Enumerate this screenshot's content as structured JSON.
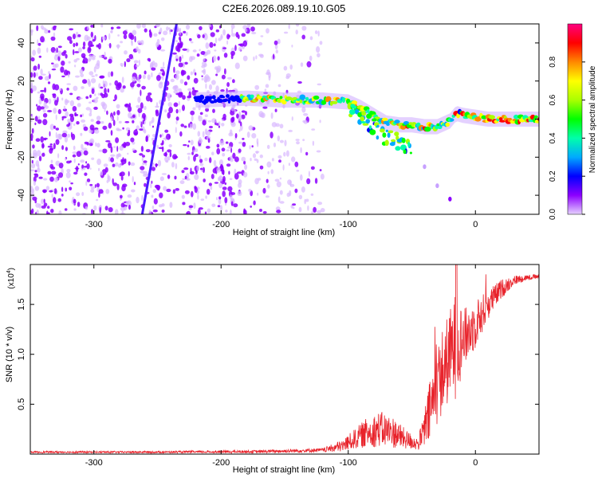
{
  "figure": {
    "title": "C2E6.2026.089.19.10.G05"
  },
  "chart_data": [
    {
      "id": "spectrogram",
      "type": "heatmap",
      "title": "C2E6.2026.089.19.10.G05",
      "xlabel": "Height of straight line (km)",
      "ylabel": "Frequency (Hz)",
      "xlim": [
        -350,
        50
      ],
      "ylim": [
        -50,
        50
      ],
      "x_ticks": [
        -300,
        -200,
        -100,
        0
      ],
      "x_tick_labels": [
        "-300",
        "-200",
        "-100",
        "0"
      ],
      "y_ticks": [
        -40,
        -20,
        0,
        20,
        40
      ],
      "y_tick_labels": [
        "-40",
        "-20",
        "0",
        "20",
        "40"
      ],
      "colorbar": {
        "label": "Normalized spectral amplitude",
        "range": [
          0,
          1
        ],
        "ticks": [
          0.0,
          0.2,
          0.4,
          0.6,
          0.8
        ],
        "tick_labels": [
          "0.0",
          "0.2",
          "0.4",
          "0.6",
          "0.8"
        ],
        "colors": [
          "#e6d2ff",
          "#8c00ff",
          "#0000ff",
          "#00aaff",
          "#00ffaa",
          "#00ff00",
          "#aaff00",
          "#ffff00",
          "#ff8800",
          "#ff0000",
          "#ff0080"
        ]
      },
      "main_signal": [
        {
          "x": -220,
          "y": 10
        },
        {
          "x": -180,
          "y": 11
        },
        {
          "x": -150,
          "y": 10
        },
        {
          "x": -120,
          "y": 10
        },
        {
          "x": -100,
          "y": 9
        },
        {
          "x": -90,
          "y": 6
        },
        {
          "x": -80,
          "y": 2
        },
        {
          "x": -70,
          "y": -2
        },
        {
          "x": -60,
          "y": -3
        },
        {
          "x": -50,
          "y": -3
        },
        {
          "x": -40,
          "y": -4
        },
        {
          "x": -30,
          "y": -4
        },
        {
          "x": -20,
          "y": -1
        },
        {
          "x": -15,
          "y": 3
        },
        {
          "x": -10,
          "y": 2
        },
        {
          "x": 0,
          "y": 1
        },
        {
          "x": 10,
          "y": 0
        },
        {
          "x": 30,
          "y": 0
        },
        {
          "x": 50,
          "y": 0
        }
      ],
      "lower_branch": [
        {
          "x": -100,
          "y": 6
        },
        {
          "x": -90,
          "y": 2
        },
        {
          "x": -80,
          "y": -4
        },
        {
          "x": -70,
          "y": -9
        },
        {
          "x": -60,
          "y": -12
        },
        {
          "x": -50,
          "y": -14
        }
      ],
      "faint_streak": [
        {
          "x": -40,
          "y": -25
        },
        {
          "x": -30,
          "y": -35
        },
        {
          "x": -20,
          "y": -42
        }
      ],
      "diagonal_line": {
        "x1": -262,
        "y1": -50,
        "x2": -235,
        "y2": 50
      }
    },
    {
      "id": "snr",
      "type": "line",
      "xlabel": "Height of straight line (km)",
      "ylabel": "SNR (10 * v/v)",
      "multiplier": "(x10",
      "multiplier_exp": "4",
      "multiplier_close": ")",
      "xlim": [
        -350,
        50
      ],
      "ylim": [
        0,
        1.9
      ],
      "x_ticks": [
        -300,
        -200,
        -100,
        0
      ],
      "x_tick_labels": [
        "-300",
        "-200",
        "-100",
        "0"
      ],
      "y_ticks": [
        0.5,
        1.0,
        1.5
      ],
      "y_tick_labels": [
        "0.5",
        "1.0",
        "1.5"
      ],
      "line_color": "#e8232b",
      "envelope": [
        {
          "x": -350,
          "mean": 0.02,
          "amp": 0.01
        },
        {
          "x": -250,
          "mean": 0.02,
          "amp": 0.01
        },
        {
          "x": -170,
          "mean": 0.025,
          "amp": 0.015
        },
        {
          "x": -120,
          "mean": 0.04,
          "amp": 0.02
        },
        {
          "x": -105,
          "mean": 0.08,
          "amp": 0.06
        },
        {
          "x": -95,
          "mean": 0.15,
          "amp": 0.1
        },
        {
          "x": -85,
          "mean": 0.22,
          "amp": 0.15
        },
        {
          "x": -75,
          "mean": 0.25,
          "amp": 0.18
        },
        {
          "x": -65,
          "mean": 0.22,
          "amp": 0.16
        },
        {
          "x": -55,
          "mean": 0.15,
          "amp": 0.1
        },
        {
          "x": -45,
          "mean": 0.1,
          "amp": 0.06
        },
        {
          "x": -40,
          "mean": 0.25,
          "amp": 0.2
        },
        {
          "x": -35,
          "mean": 0.45,
          "amp": 0.35
        },
        {
          "x": -30,
          "mean": 0.7,
          "amp": 0.4
        },
        {
          "x": -25,
          "mean": 0.85,
          "amp": 0.45
        },
        {
          "x": -20,
          "mean": 1.0,
          "amp": 0.45
        },
        {
          "x": -15,
          "mean": 1.1,
          "amp": 0.55
        },
        {
          "x": -10,
          "mean": 1.15,
          "amp": 0.3
        },
        {
          "x": 0,
          "mean": 1.3,
          "amp": 0.25
        },
        {
          "x": 10,
          "mean": 1.5,
          "amp": 0.15
        },
        {
          "x": 20,
          "mean": 1.65,
          "amp": 0.1
        },
        {
          "x": 30,
          "mean": 1.74,
          "amp": 0.05
        },
        {
          "x": 40,
          "mean": 1.77,
          "amp": 0.03
        },
        {
          "x": 50,
          "mean": 1.78,
          "amp": 0.02
        }
      ]
    }
  ]
}
